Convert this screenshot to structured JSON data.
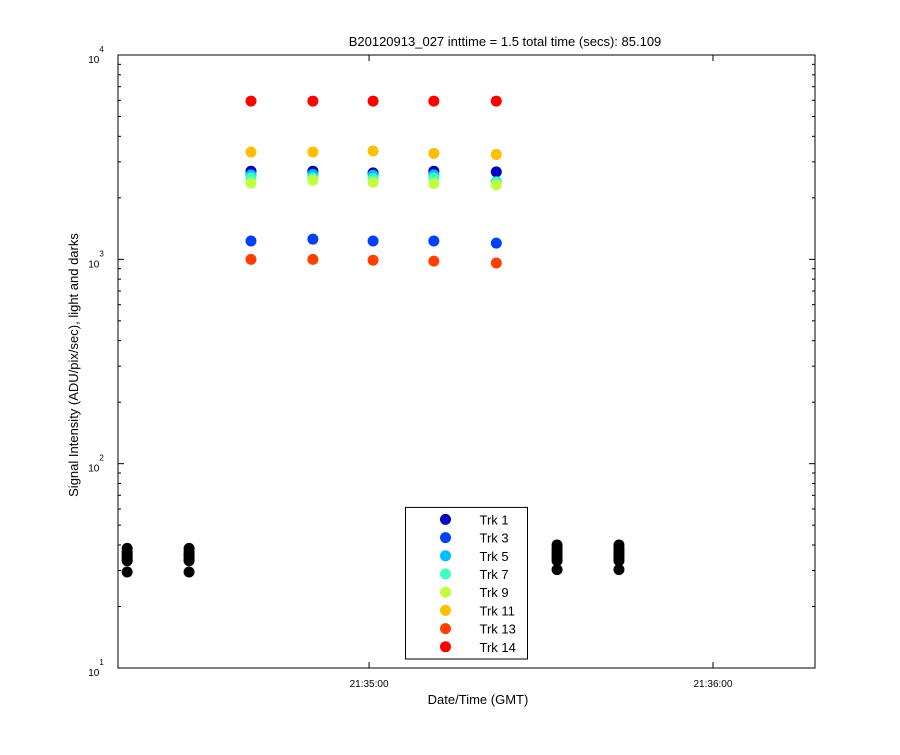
{
  "chart_data": {
    "type": "scatter",
    "title": "B20120913_027 inttime = 1.5 total time (secs): 85.109",
    "x_label": "Date/Time (GMT)",
    "y_label": "Signal Intensity (ADU/pix/sec), light and darks",
    "y_scale": "log",
    "minor_yticks": true,
    "xlim": [
      "21:34:16.2",
      "21:36:17.8"
    ],
    "xticks": [
      "21:35:00",
      "21:36:00"
    ],
    "ylim": [
      10,
      10000
    ],
    "yticks": [
      {
        "value": 10,
        "label": "10",
        "exponent": "1"
      },
      {
        "value": 100,
        "label": "10",
        "exponent": "2"
      },
      {
        "value": 1000,
        "label": "10",
        "exponent": "3"
      },
      {
        "value": 10000,
        "label": "10",
        "exponent": "4"
      }
    ],
    "legend": "bottom",
    "series": [
      {
        "name": "Trk 1",
        "color": "#0000BF",
        "x": [
          "21:34:39.4",
          "21:34:50.2",
          "21:35:00.7",
          "21:35:11.3",
          "21:35:22.2"
        ],
        "values": [
          2700,
          2700,
          2650,
          2700,
          2680
        ]
      },
      {
        "name": "Trk 3",
        "color": "#0040FF",
        "x": [
          "21:34:39.4",
          "21:34:50.2",
          "21:35:00.7",
          "21:35:11.3",
          "21:35:22.2"
        ],
        "values": [
          1230,
          1255,
          1230,
          1230,
          1200
        ]
      },
      {
        "name": "Trk 5",
        "color": "#00BFFF",
        "x": [
          "21:34:39.4",
          "21:34:50.2",
          "21:35:00.7",
          "21:35:11.3",
          "21:35:22.2"
        ],
        "values": [
          2590,
          2600,
          2580,
          2590,
          2400
        ]
      },
      {
        "name": "Trk 7",
        "color": "#40FFBF",
        "x": [
          "21:34:39.4",
          "21:34:50.2",
          "21:35:00.7",
          "21:35:11.3",
          "21:35:22.2"
        ],
        "values": [
          2500,
          2500,
          2480,
          2500,
          2380
        ]
      },
      {
        "name": "Trk 9",
        "color": "#BFFF40",
        "x": [
          "21:34:39.4",
          "21:34:50.2",
          "21:35:00.7",
          "21:35:11.3",
          "21:35:22.2"
        ],
        "values": [
          2360,
          2440,
          2380,
          2350,
          2310
        ]
      },
      {
        "name": "Trk 11",
        "color": "#FFBF00",
        "x": [
          "21:34:39.4",
          "21:34:50.2",
          "21:35:00.7",
          "21:35:11.3",
          "21:35:22.2"
        ],
        "values": [
          3350,
          3350,
          3390,
          3300,
          3260
        ]
      },
      {
        "name": "Trk 13",
        "color": "#FF4000",
        "x": [
          "21:34:39.4",
          "21:34:50.2",
          "21:35:00.7",
          "21:35:11.3",
          "21:35:22.2"
        ],
        "values": [
          1000,
          1000,
          990,
          980,
          960
        ]
      },
      {
        "name": "Trk 14",
        "color": "#FF0000",
        "x": [
          "21:34:39.4",
          "21:34:50.2",
          "21:35:00.7",
          "21:35:11.3",
          "21:35:22.2"
        ],
        "values": [
          5950,
          5950,
          5950,
          5950,
          5950
        ]
      },
      {
        "color": "#000000",
        "x": [
          "21:34:17.8",
          "21:34:17.8",
          "21:34:17.8",
          "21:34:17.8",
          "21:34:17.8",
          "21:34:17.8",
          "21:34:17.8",
          "21:34:17.8",
          "21:34:28.6",
          "21:34:28.6",
          "21:34:28.6",
          "21:34:28.6",
          "21:34:28.6",
          "21:34:28.6",
          "21:34:28.6",
          "21:34:28.6",
          "21:35:32.8",
          "21:35:32.8",
          "21:35:32.8",
          "21:35:32.8",
          "21:35:32.8",
          "21:35:32.8",
          "21:35:32.8",
          "21:35:32.8",
          "21:35:43.6",
          "21:35:43.6",
          "21:35:43.6",
          "21:35:43.6",
          "21:35:43.6",
          "21:35:43.6",
          "21:35:43.6",
          "21:35:43.6"
        ],
        "values": [
          29.5,
          33.5,
          34,
          35,
          35.5,
          36,
          37,
          38.5,
          29.5,
          33.5,
          34,
          35,
          35.5,
          36,
          37,
          38.5,
          30.3,
          33.5,
          34.5,
          35.5,
          36.5,
          37.5,
          38.5,
          40,
          30.3,
          33.5,
          34.5,
          35.5,
          36.5,
          37.5,
          38.5,
          40
        ]
      }
    ]
  }
}
